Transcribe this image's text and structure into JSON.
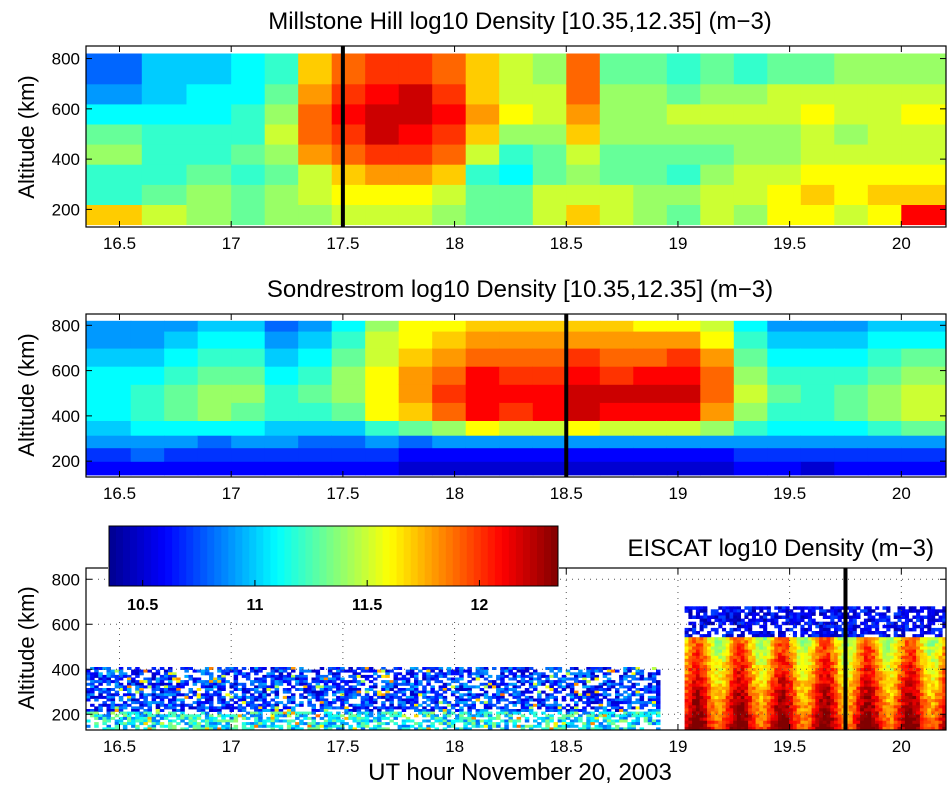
{
  "figure": {
    "xlabel": "UT hour November 20, 2003",
    "colors": {
      "low": "#00008f",
      "mid": "#00ffff",
      "high": "#ff0000",
      "top": "#800000"
    }
  },
  "chart_data": [
    {
      "type": "heatmap",
      "title": "Millstone Hill log10 Density [10.35,12.35] (m−3)",
      "ylabel": "Altitude (km)",
      "xlim": [
        16.35,
        20.2
      ],
      "ylim": [
        130,
        850
      ],
      "x_ticks": [
        16.5,
        17,
        17.5,
        18,
        18.5,
        19,
        19.5,
        20
      ],
      "y_ticks": [
        200,
        400,
        600,
        800
      ],
      "color_range": [
        10.35,
        12.35
      ],
      "marker_time": 17.5,
      "grid": false,
      "altitudes": [
        180,
        260,
        340,
        420,
        500,
        580,
        660,
        740
      ],
      "times": [
        16.35,
        16.6,
        16.8,
        17.0,
        17.15,
        17.3,
        17.45,
        17.6,
        17.75,
        17.9,
        18.05,
        18.2,
        18.35,
        18.5,
        18.65,
        18.8,
        18.95,
        19.1,
        19.25,
        19.4,
        19.55,
        19.7,
        19.85,
        20.0
      ],
      "columns": [
        [
          11.7,
          11.2,
          11.2,
          11.4,
          11.3,
          11.1,
          10.9,
          10.8
        ],
        [
          11.5,
          11.3,
          11.2,
          11.2,
          11.2,
          11.1,
          11.0,
          11.0
        ],
        [
          11.4,
          11.4,
          11.3,
          11.2,
          11.2,
          11.1,
          11.1,
          11.0
        ],
        [
          11.3,
          11.3,
          11.2,
          11.3,
          11.2,
          11.2,
          11.1,
          11.1
        ],
        [
          11.4,
          11.4,
          11.3,
          11.4,
          11.5,
          11.4,
          11.3,
          11.2
        ],
        [
          11.4,
          11.5,
          11.5,
          11.8,
          11.9,
          11.9,
          11.8,
          11.7
        ],
        [
          11.5,
          11.6,
          11.7,
          11.9,
          12.0,
          12.1,
          12.0,
          11.9
        ],
        [
          11.5,
          11.6,
          11.8,
          12.0,
          12.2,
          12.2,
          12.1,
          12.0
        ],
        [
          11.5,
          11.6,
          11.8,
          12.0,
          12.1,
          12.2,
          12.2,
          12.0
        ],
        [
          11.4,
          11.5,
          11.7,
          11.9,
          12.0,
          12.1,
          12.0,
          11.9
        ],
        [
          11.3,
          11.3,
          11.2,
          11.5,
          11.7,
          11.8,
          11.7,
          11.7
        ],
        [
          11.3,
          11.3,
          11.1,
          11.2,
          11.4,
          11.6,
          11.5,
          11.5
        ],
        [
          11.5,
          11.5,
          11.3,
          11.3,
          11.4,
          11.5,
          11.5,
          11.4
        ],
        [
          11.7,
          11.5,
          11.4,
          11.5,
          11.7,
          11.8,
          11.9,
          11.9
        ],
        [
          11.5,
          11.5,
          11.3,
          11.3,
          11.4,
          11.4,
          11.4,
          11.3
        ],
        [
          11.4,
          11.4,
          11.3,
          11.3,
          11.4,
          11.4,
          11.4,
          11.3
        ],
        [
          11.3,
          11.4,
          11.2,
          11.3,
          11.4,
          11.5,
          11.3,
          11.2
        ],
        [
          11.5,
          11.5,
          11.4,
          11.3,
          11.4,
          11.5,
          11.4,
          11.3
        ],
        [
          11.4,
          11.5,
          11.5,
          11.4,
          11.4,
          11.5,
          11.4,
          11.2
        ],
        [
          11.6,
          11.6,
          11.5,
          11.4,
          11.4,
          11.5,
          11.5,
          11.3
        ],
        [
          11.6,
          11.7,
          11.6,
          11.5,
          11.5,
          11.6,
          11.5,
          11.3
        ],
        [
          11.5,
          11.6,
          11.6,
          11.5,
          11.4,
          11.5,
          11.5,
          11.4
        ],
        [
          11.6,
          11.7,
          11.6,
          11.5,
          11.5,
          11.5,
          11.5,
          11.4
        ],
        [
          12.1,
          11.7,
          11.6,
          11.5,
          11.5,
          11.6,
          11.5,
          11.4
        ]
      ]
    },
    {
      "type": "heatmap",
      "title": "Sondrestrom log10 Density [10.35,12.35] (m−3)",
      "ylabel": "Altitude (km)",
      "xlim": [
        16.35,
        20.2
      ],
      "ylim": [
        130,
        850
      ],
      "x_ticks": [
        16.5,
        17,
        17.5,
        18,
        18.5,
        19,
        19.5,
        20
      ],
      "y_ticks": [
        200,
        400,
        600,
        800
      ],
      "color_range": [
        10.35,
        12.35
      ],
      "marker_time": 18.5,
      "grid": false,
      "altitudes": [
        170,
        230,
        290,
        340,
        420,
        500,
        580,
        660,
        740,
        810
      ],
      "times": [
        16.35,
        16.55,
        16.7,
        16.85,
        17.0,
        17.15,
        17.3,
        17.45,
        17.6,
        17.75,
        17.9,
        18.05,
        18.2,
        18.35,
        18.5,
        18.65,
        18.8,
        18.95,
        19.1,
        19.25,
        19.4,
        19.55,
        19.7,
        19.85,
        20.0
      ],
      "columns": [
        [
          10.6,
          10.7,
          10.9,
          11.0,
          11.1,
          11.1,
          11.1,
          11.0,
          10.9,
          10.9
        ],
        [
          10.6,
          10.8,
          10.9,
          11.1,
          11.2,
          11.2,
          11.1,
          11.0,
          10.9,
          10.9
        ],
        [
          10.6,
          10.7,
          10.9,
          11.1,
          11.3,
          11.3,
          11.2,
          11.1,
          11.0,
          10.9
        ],
        [
          10.6,
          10.7,
          10.8,
          11.1,
          11.4,
          11.4,
          11.3,
          11.2,
          11.1,
          11.0
        ],
        [
          10.6,
          10.7,
          10.9,
          11.1,
          11.3,
          11.4,
          11.3,
          11.2,
          11.1,
          11.0
        ],
        [
          10.6,
          10.7,
          10.9,
          11.0,
          11.2,
          11.2,
          11.1,
          11.0,
          10.9,
          10.8
        ],
        [
          10.6,
          10.7,
          10.8,
          11.0,
          11.2,
          11.3,
          11.2,
          11.1,
          11.0,
          10.9
        ],
        [
          10.6,
          10.7,
          10.8,
          11.0,
          11.3,
          11.4,
          11.4,
          11.3,
          11.2,
          11.1
        ],
        [
          10.6,
          10.7,
          10.9,
          11.2,
          11.6,
          11.6,
          11.6,
          11.5,
          11.5,
          11.4
        ],
        [
          10.5,
          10.6,
          10.8,
          11.3,
          11.7,
          11.8,
          11.8,
          11.7,
          11.6,
          11.6
        ],
        [
          10.5,
          10.6,
          10.9,
          11.4,
          11.9,
          12.0,
          11.9,
          11.8,
          11.7,
          11.6
        ],
        [
          10.5,
          10.6,
          10.9,
          11.6,
          12.1,
          12.1,
          12.1,
          11.9,
          11.8,
          11.7
        ],
        [
          10.5,
          10.6,
          10.9,
          11.5,
          12.0,
          12.1,
          12.0,
          11.9,
          11.8,
          11.7
        ],
        [
          10.5,
          10.6,
          10.9,
          11.5,
          12.1,
          12.1,
          12.0,
          11.9,
          11.8,
          11.7
        ],
        [
          10.5,
          10.6,
          10.9,
          11.6,
          12.2,
          12.2,
          12.1,
          12.0,
          11.8,
          11.7
        ],
        [
          10.5,
          10.6,
          10.9,
          11.5,
          12.1,
          12.2,
          12.0,
          11.9,
          11.8,
          11.7
        ],
        [
          10.5,
          10.6,
          10.9,
          11.5,
          12.1,
          12.2,
          12.1,
          11.9,
          11.8,
          11.6
        ],
        [
          10.5,
          10.6,
          10.9,
          11.5,
          12.1,
          12.2,
          12.1,
          12.0,
          11.8,
          11.6
        ],
        [
          10.5,
          10.6,
          10.9,
          11.4,
          11.8,
          11.9,
          11.9,
          11.8,
          11.6,
          11.5
        ],
        [
          10.6,
          10.7,
          10.9,
          11.2,
          11.4,
          11.5,
          11.4,
          11.3,
          11.2,
          11.1
        ],
        [
          10.6,
          10.7,
          10.9,
          11.1,
          11.2,
          11.3,
          11.2,
          11.1,
          11.0,
          10.9
        ],
        [
          10.5,
          10.7,
          10.9,
          11.1,
          11.2,
          11.2,
          11.2,
          11.1,
          11.0,
          10.9
        ],
        [
          10.6,
          10.7,
          10.9,
          11.1,
          11.3,
          11.3,
          11.2,
          11.1,
          11.0,
          10.9
        ],
        [
          10.6,
          10.7,
          10.9,
          11.2,
          11.4,
          11.4,
          11.3,
          11.2,
          11.1,
          11.0
        ],
        [
          10.6,
          10.7,
          10.9,
          11.3,
          11.5,
          11.5,
          11.4,
          11.3,
          11.1,
          11.0
        ]
      ]
    },
    {
      "type": "heatmap",
      "title": "EISCAT log10 Density (m−3)",
      "ylabel": "Altitude (km)",
      "xlabel": "UT hour November 20, 2003",
      "xlim": [
        16.35,
        20.2
      ],
      "ylim": [
        130,
        850
      ],
      "x_ticks": [
        16.5,
        17,
        17.5,
        18,
        18.5,
        19,
        19.5,
        20
      ],
      "y_ticks": [
        200,
        400,
        600,
        800
      ],
      "grid": true,
      "marker_time": 19.75,
      "colorbar": {
        "range": [
          10.35,
          12.35
        ],
        "ticks": [
          10.5,
          11,
          11.5,
          12
        ],
        "tick_labels": [
          "10.5",
          "11",
          "11.5",
          "12"
        ],
        "placement": "top-left"
      },
      "segments": [
        {
          "t0": 16.35,
          "t1": 18.92,
          "alt0": 130,
          "alt1": 410,
          "typical_value": 11.0,
          "range": [
            10.4,
            11.9
          ]
        },
        {
          "t0": 19.03,
          "t1": 20.2,
          "alt0": 130,
          "alt1": 680,
          "typical_value": 11.8,
          "range": [
            10.4,
            12.35
          ]
        }
      ]
    }
  ]
}
